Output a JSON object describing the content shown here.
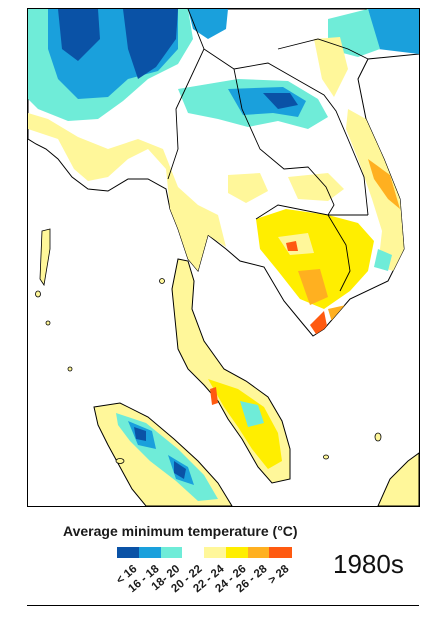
{
  "legend": {
    "title": "Average minimum temperature (°C)",
    "items": [
      {
        "label": "< 16",
        "color": "#0a52a6"
      },
      {
        "label": "16 - 18",
        "color": "#1aa0dc"
      },
      {
        "label": "18- 20",
        "color": "#6fecd8"
      },
      {
        "label": "20 - 22",
        "color": "#ffffff"
      },
      {
        "label": "22 - 24",
        "color": "#fff79a"
      },
      {
        "label": "24 - 26",
        "color": "#ffee00"
      },
      {
        "label": "26 - 28",
        "color": "#ffb020"
      },
      {
        "label": "> 28",
        "color": "#ff5a10"
      }
    ]
  },
  "decade": "1980s"
}
